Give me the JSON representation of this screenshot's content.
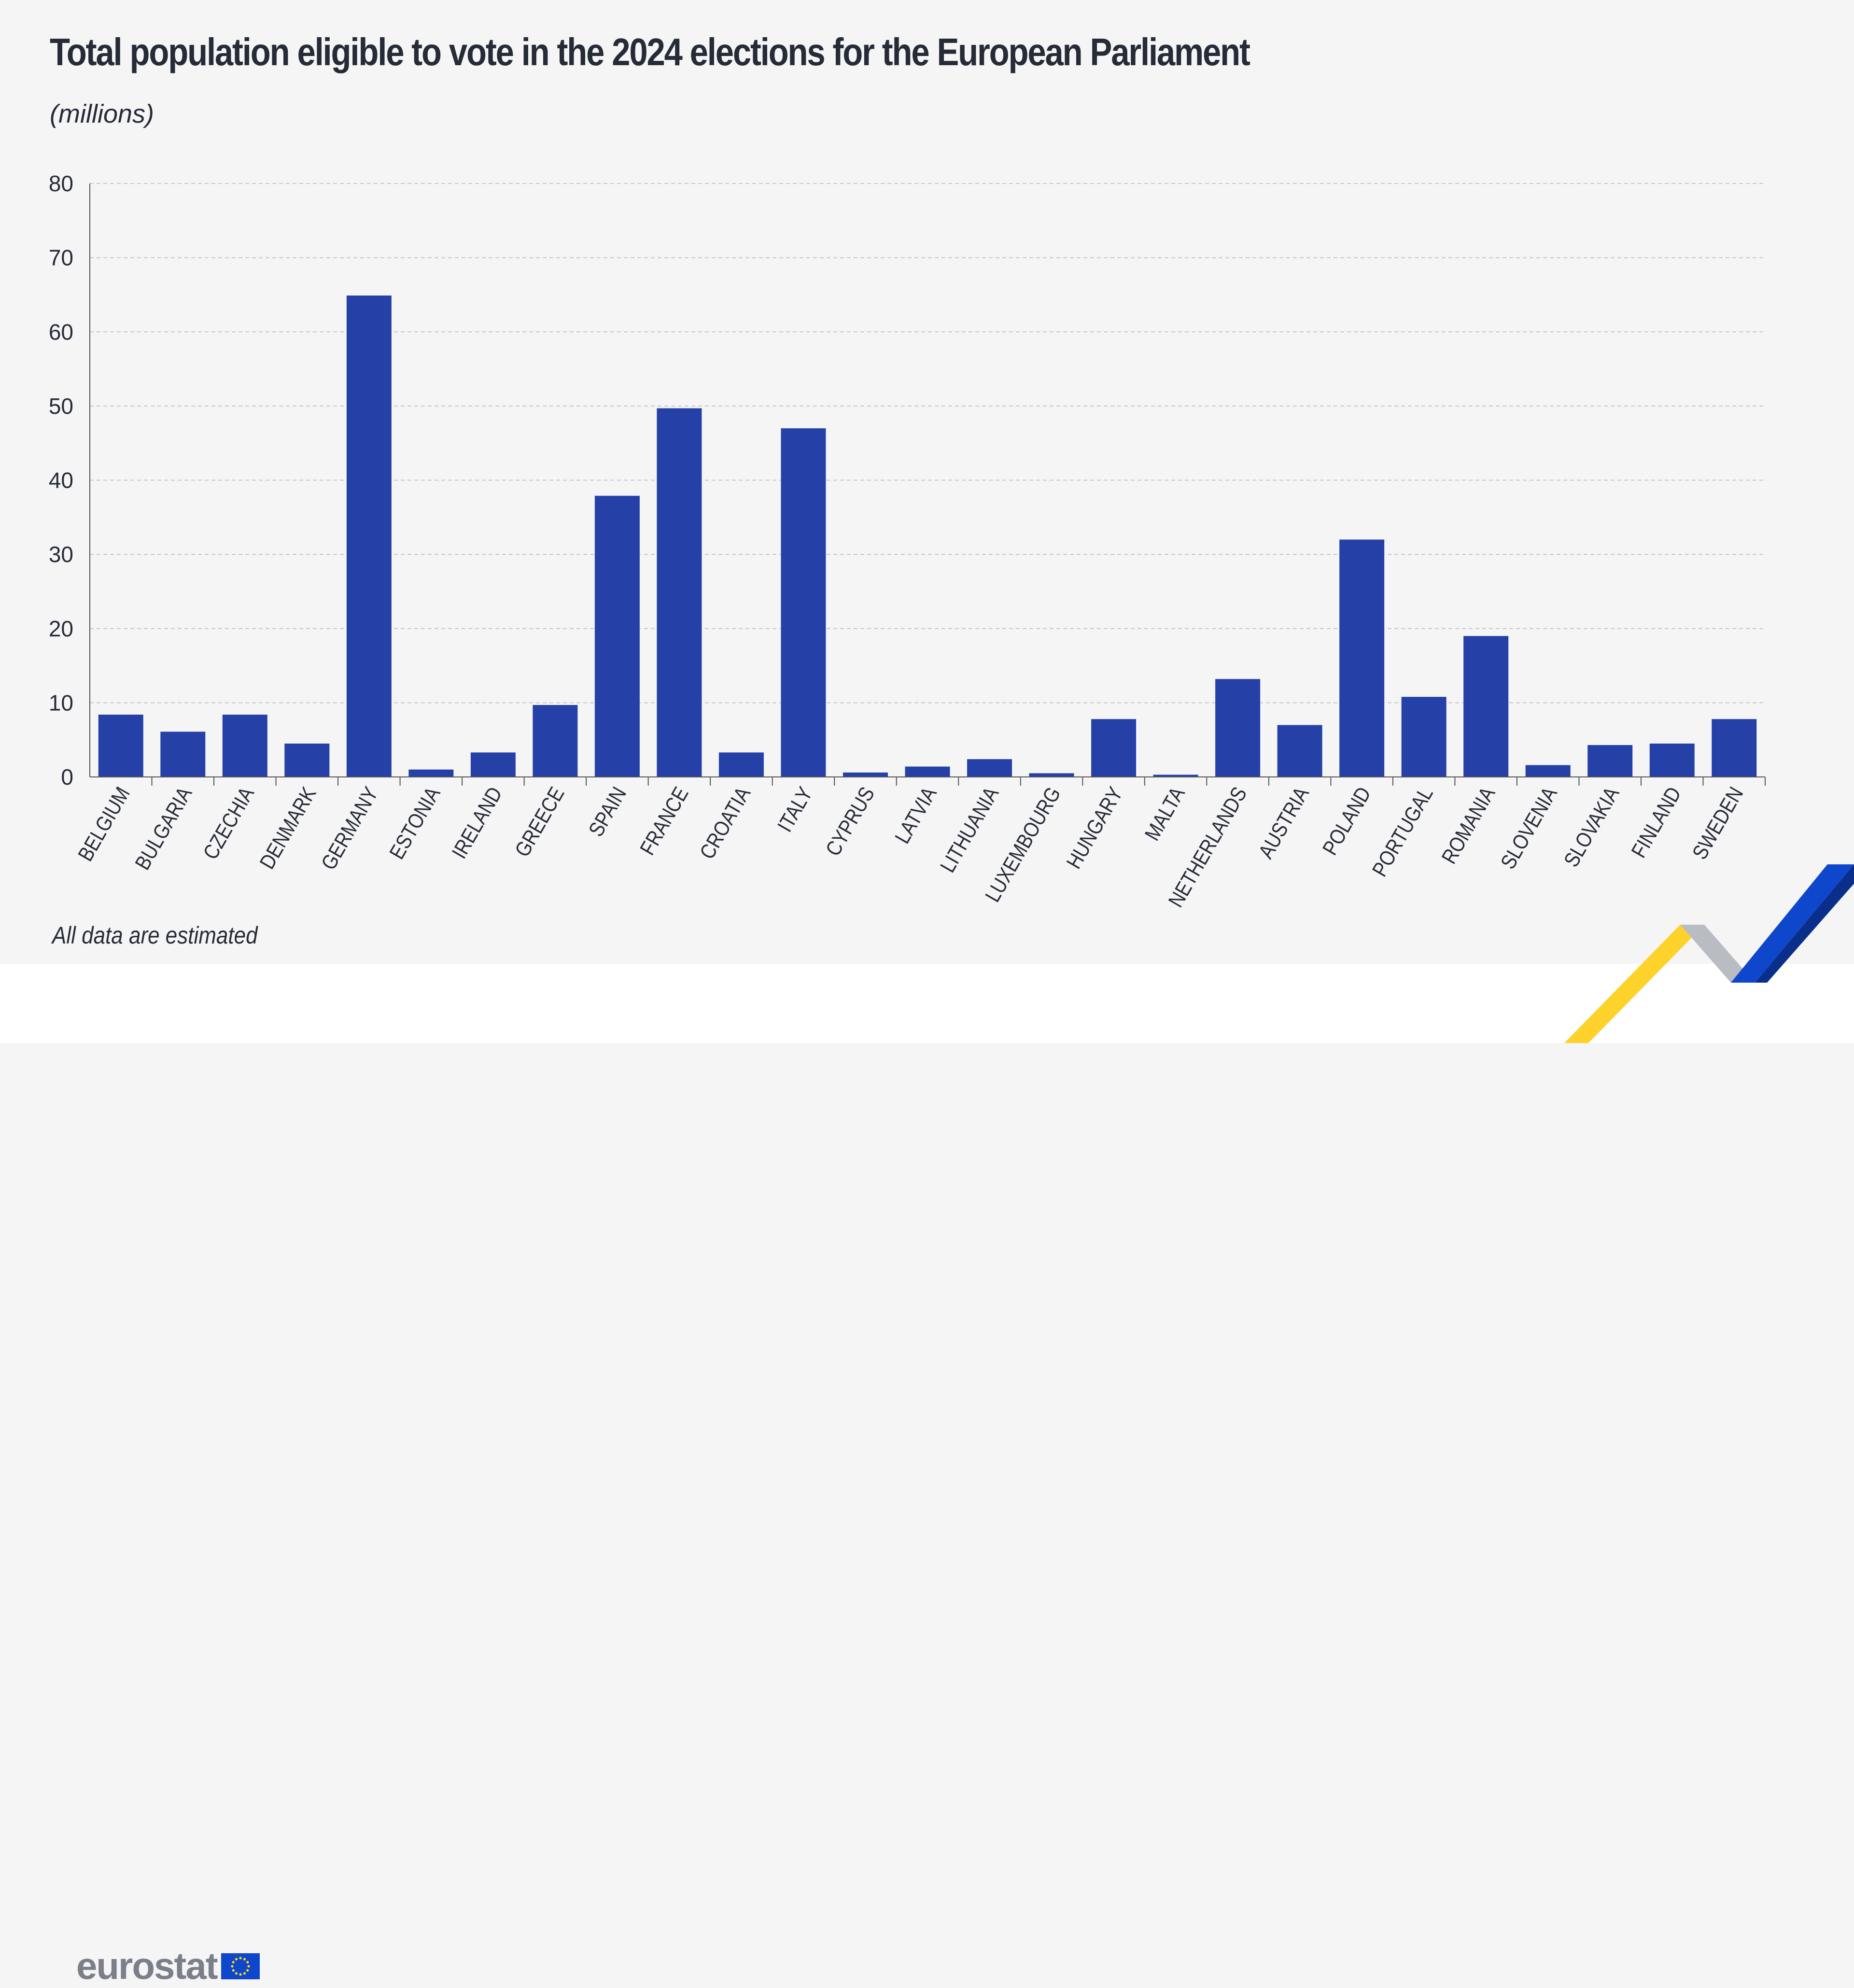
{
  "title": "Total population eligible to vote in the 2024 elections for the European Parliament",
  "subtitle": "(millions)",
  "note": "All data are estimated",
  "logo": {
    "text": "eurostat"
  },
  "colors": {
    "bar": "#2541a8",
    "background": "#f5f5f5",
    "grid": "#c8c8c8",
    "text": "#262b38"
  },
  "chart_data": {
    "type": "bar",
    "title": "Total population eligible to vote in the 2024 elections for the European Parliament",
    "ylabel": "(millions)",
    "xlabel": "",
    "ylim": [
      0,
      80
    ],
    "yticks": [
      0,
      10,
      20,
      30,
      40,
      50,
      60,
      70,
      80
    ],
    "grid": true,
    "categories": [
      "BELGIUM",
      "BULGARIA",
      "CZECHIA",
      "DENMARK",
      "GERMANY",
      "ESTONIA",
      "IRELAND",
      "GREECE",
      "SPAIN",
      "FRANCE",
      "CROATIA",
      "ITALY",
      "CYPRUS",
      "LATVIA",
      "LITHUANIA",
      "LUXEMBOURG",
      "HUNGARY",
      "MALTA",
      "NETHERLANDS",
      "AUSTRIA",
      "POLAND",
      "PORTUGAL",
      "ROMANIA",
      "SLOVENIA",
      "SLOVAKIA",
      "FINLAND",
      "SWEDEN"
    ],
    "values": [
      8.4,
      6.1,
      8.4,
      4.5,
      64.9,
      1.0,
      3.3,
      9.7,
      37.9,
      49.7,
      3.3,
      47.0,
      0.6,
      1.4,
      2.4,
      0.5,
      7.8,
      0.3,
      13.2,
      7.0,
      32.0,
      10.8,
      19.0,
      1.6,
      4.3,
      4.5,
      7.8
    ]
  }
}
